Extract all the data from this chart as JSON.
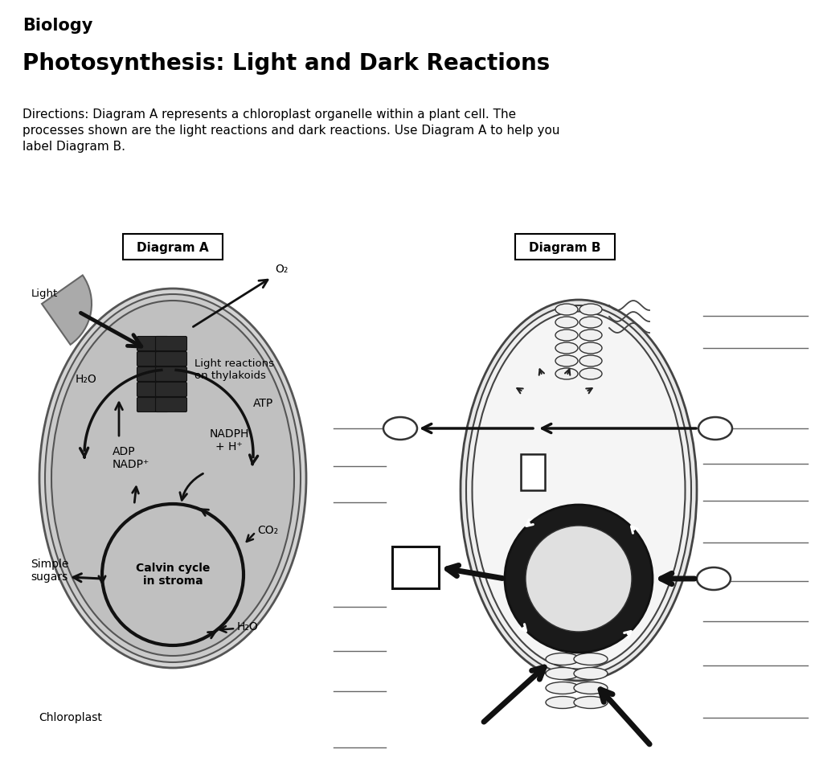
{
  "title": "Biology",
  "subtitle": "Photosynthesis: Light and Dark Reactions",
  "directions_line1": "Directions: Diagram A represents a chloroplast organelle within a plant cell. The",
  "directions_line2": "processes shown are the light reactions and dark reactions. Use Diagram A to help you",
  "directions_line3": "label Diagram B.",
  "diagram_a_label": "Diagram A",
  "diagram_b_label": "Diagram B",
  "bg_color": "#ffffff",
  "labels_a": {
    "light": "Light",
    "light_reactions": "Light reactions\non thylakoids",
    "h2o_top": "H₂O",
    "o2": "O₂",
    "atp": "ATP",
    "nadph": "NADPH\n+ H⁺",
    "adp_nadp": "ADP\nNADP⁺",
    "co2": "CO₂",
    "simple_sugars": "Simple\nsugars",
    "calvin": "Calvin cycle\nin stroma",
    "h2o_bottom": "H₂O",
    "chloroplast": "Chloroplast"
  }
}
